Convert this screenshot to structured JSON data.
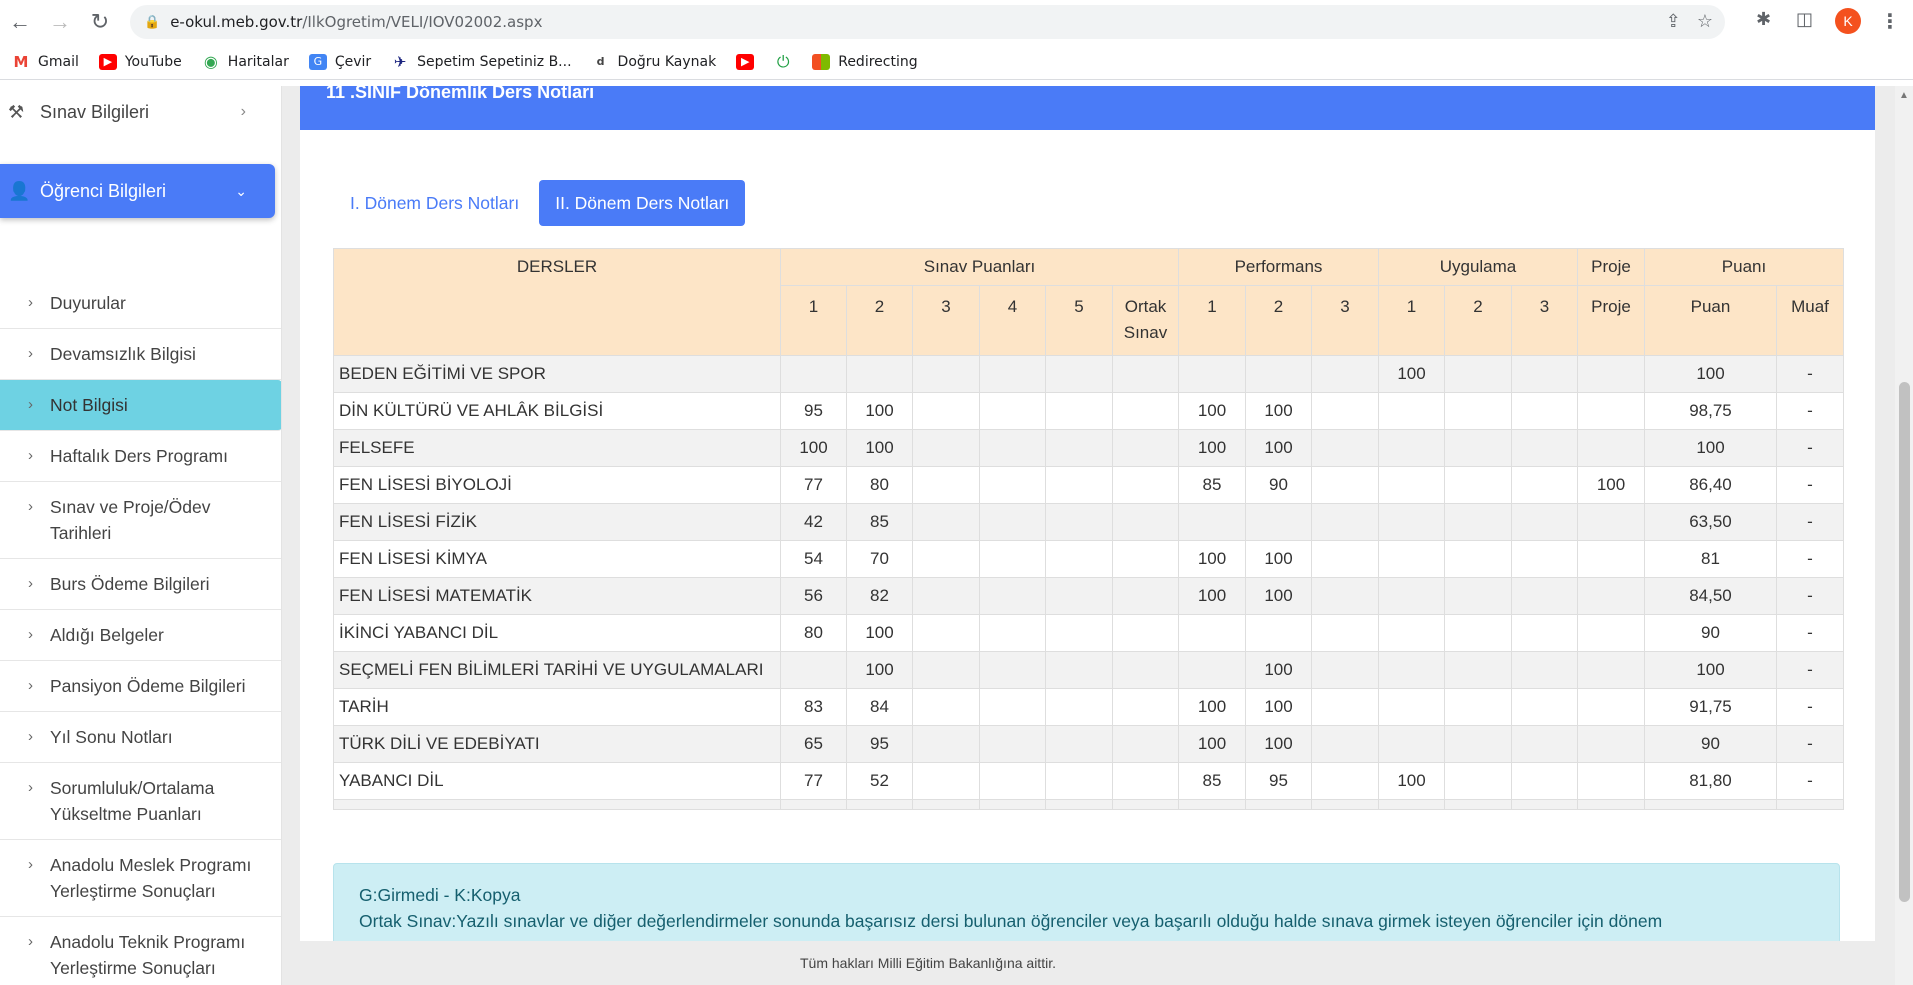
{
  "browser": {
    "url_host": "e-okul.meb.gov.tr",
    "url_path": "/IlkOgretim/VELI/IOV02002.aspx",
    "avatar_letter": "K",
    "bookmarks": [
      {
        "label": "Gmail",
        "icon": "gmail-icon"
      },
      {
        "label": "YouTube",
        "icon": "youtube-icon"
      },
      {
        "label": "Haritalar",
        "icon": "maps-icon"
      },
      {
        "label": "Çevir",
        "icon": "translate-icon"
      },
      {
        "label": "Sepetim Sepetiniz B...",
        "icon": "sepetim-icon"
      },
      {
        "label": "Doğru Kaynak",
        "icon": "dogru-kaynak-icon"
      },
      {
        "label": "",
        "icon": "youtube-icon"
      },
      {
        "label": "",
        "icon": "power-icon"
      },
      {
        "label": "Redirecting",
        "icon": "microsoft-icon"
      }
    ]
  },
  "sidebar": {
    "sinav_bilgileri": "Sınav Bilgileri",
    "ogrenci_bilgileri": "Öğrenci Bilgileri",
    "items": [
      {
        "label": "Duyurular"
      },
      {
        "label": "Devamsızlık Bilgisi"
      },
      {
        "label": "Not Bilgisi",
        "active": true
      },
      {
        "label": "Haftalık Ders Programı"
      },
      {
        "label": "Sınav ve Proje/Ödev Tarihleri"
      },
      {
        "label": "Burs Ödeme Bilgileri"
      },
      {
        "label": "Aldığı Belgeler"
      },
      {
        "label": "Pansiyon Ödeme Bilgileri"
      },
      {
        "label": "Yıl Sonu Notları"
      },
      {
        "label": "Sorumluluk/Ortalama Yükseltme Puanları"
      },
      {
        "label": "Anadolu Meslek Programı Yerleştirme Sonuçları"
      },
      {
        "label": "Anadolu Teknik Programı Yerleştirme Sonuçları"
      }
    ]
  },
  "main": {
    "card_title": "11 .SINIF Dönemlik Ders Notları",
    "tabs": [
      {
        "label": "I. Dönem Ders Notları",
        "active": false
      },
      {
        "label": "II. Dönem Ders Notları",
        "active": true
      }
    ],
    "table": {
      "group_headers": {
        "dersler": "DERSLER",
        "sinav": "Sınav Puanları",
        "performans": "Performans",
        "uygulama": "Uygulama",
        "proje": "Proje",
        "puani": "Puanı"
      },
      "sub_headers": [
        "1",
        "2",
        "3",
        "4",
        "5",
        "Ortak Sınav",
        "1",
        "2",
        "3",
        "1",
        "2",
        "3",
        "Proje",
        "Puan",
        "Muaf"
      ],
      "rows": [
        {
          "ders": "BEDEN EĞİTİMİ VE SPOR",
          "cells": [
            "",
            "",
            "",
            "",
            "",
            "",
            "",
            "",
            "",
            "100",
            "",
            "",
            "",
            "100",
            "-"
          ]
        },
        {
          "ders": "DİN KÜLTÜRÜ VE AHLÂK BİLGİSİ",
          "cells": [
            "95",
            "100",
            "",
            "",
            "",
            "",
            "100",
            "100",
            "",
            "",
            "",
            "",
            "",
            "98,75",
            "-"
          ]
        },
        {
          "ders": "FELSEFE",
          "cells": [
            "100",
            "100",
            "",
            "",
            "",
            "",
            "100",
            "100",
            "",
            "",
            "",
            "",
            "",
            "100",
            "-"
          ]
        },
        {
          "ders": "FEN LİSESİ BİYOLOJİ",
          "cells": [
            "77",
            "80",
            "",
            "",
            "",
            "",
            "85",
            "90",
            "",
            "",
            "",
            "",
            "100",
            "86,40",
            "-"
          ]
        },
        {
          "ders": "FEN LİSESİ FİZİK",
          "cells": [
            "42",
            "85",
            "",
            "",
            "",
            "",
            "",
            "",
            "",
            "",
            "",
            "",
            "",
            "63,50",
            "-"
          ]
        },
        {
          "ders": "FEN LİSESİ KİMYA",
          "cells": [
            "54",
            "70",
            "",
            "",
            "",
            "",
            "100",
            "100",
            "",
            "",
            "",
            "",
            "",
            "81",
            "-"
          ]
        },
        {
          "ders": "FEN LİSESİ MATEMATİK",
          "cells": [
            "56",
            "82",
            "",
            "",
            "",
            "",
            "100",
            "100",
            "",
            "",
            "",
            "",
            "",
            "84,50",
            "-"
          ]
        },
        {
          "ders": "İKİNCİ YABANCI DİL",
          "cells": [
            "80",
            "100",
            "",
            "",
            "",
            "",
            "",
            "",
            "",
            "",
            "",
            "",
            "",
            "90",
            "-"
          ]
        },
        {
          "ders": "SEÇMELİ FEN BİLİMLERİ TARİHİ VE UYGULAMALARI",
          "cells": [
            "",
            "100",
            "",
            "",
            "",
            "",
            "",
            "100",
            "",
            "",
            "",
            "",
            "",
            "100",
            "-"
          ]
        },
        {
          "ders": "TARİH",
          "cells": [
            "83",
            "84",
            "",
            "",
            "",
            "",
            "100",
            "100",
            "",
            "",
            "",
            "",
            "",
            "91,75",
            "-"
          ]
        },
        {
          "ders": "TÜRK DİLİ VE EDEBİYATI",
          "cells": [
            "65",
            "95",
            "",
            "",
            "",
            "",
            "100",
            "100",
            "",
            "",
            "",
            "",
            "",
            "90",
            "-"
          ]
        },
        {
          "ders": "YABANCI DİL",
          "cells": [
            "77",
            "52",
            "",
            "",
            "",
            "",
            "85",
            "95",
            "",
            "100",
            "",
            "",
            "",
            "81,80",
            "-"
          ]
        }
      ]
    },
    "legend": {
      "line1": "G:Girmedi - K:Kopya",
      "line2": "Ortak Sınav:Yazılı sınavlar ve diğer değerlendirmeler sonunda başarısız dersi bulunan öğrenciler veya başarılı olduğu halde sınava girmek isteyen öğrenciler için dönem"
    }
  },
  "footer": "Tüm hakları Milli Eğitim Bakanlığına aittir.",
  "colors": {
    "primary": "#4a7bf7",
    "active_item": "#6ed2e3",
    "table_header": "#fde5c7",
    "legend_bg": "#cdeef4"
  }
}
